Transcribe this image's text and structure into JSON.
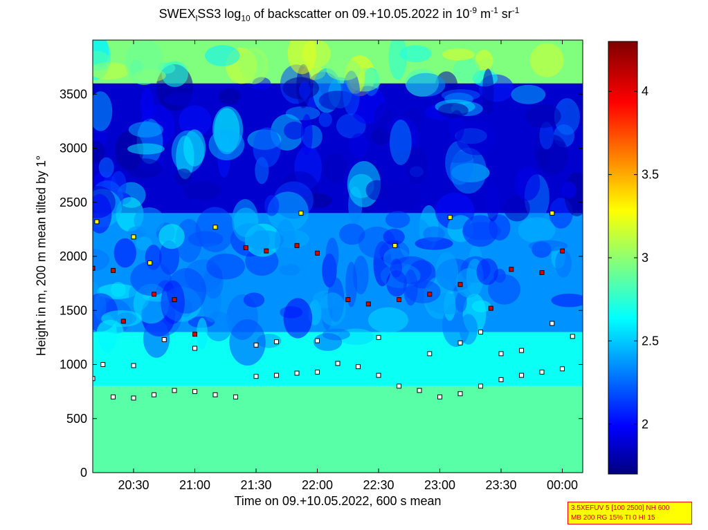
{
  "chart_data": {
    "type": "heatmap",
    "title_parts": {
      "pre": "SWEX",
      "sub1": "l",
      "mid": "SS3 log",
      "sub2": "10",
      "post": " of backscatter on 09.+10.05.2022 in 10",
      "sup1": "-9",
      "unit_m": " m",
      "sup2": "-1",
      "unit_sr": " sr",
      "sup3": "-1"
    },
    "xlabel": "Time on 09.+10.05.2022, 600 s mean",
    "ylabel": "Height in m, 200 m mean tilted by 1°",
    "x_ticks": [
      "20:30",
      "21:00",
      "21:30",
      "22:00",
      "22:30",
      "23:00",
      "23:30",
      "00:00"
    ],
    "y_ticks": [
      "0",
      "500",
      "1000",
      "1500",
      "2000",
      "2500",
      "3000",
      "3500"
    ],
    "colorbar_ticks": [
      "2",
      "2.5",
      "3",
      "3.5",
      "4"
    ],
    "xlim_minutes_after_2000": [
      10,
      250
    ],
    "ylim": [
      0,
      4000
    ],
    "colorbar_range": [
      1.7,
      4.3
    ],
    "colormap": "jet",
    "layers": [
      {
        "name": "surface",
        "height_range": [
          0,
          800
        ],
        "log_value": 2.9
      },
      {
        "name": "boundary",
        "height_range": [
          800,
          1300
        ],
        "log_value": 2.7
      },
      {
        "name": "transition",
        "height_range": [
          1300,
          2400
        ],
        "log_value": 2.4
      },
      {
        "name": "upper",
        "height_range": [
          2400,
          3600
        ],
        "log_value": 1.9
      },
      {
        "name": "top",
        "height_range": [
          3600,
          4000
        ],
        "log_value": 3.0
      }
    ],
    "marker_layers": [
      {
        "color": "white",
        "points": [
          [
            10,
            870
          ],
          [
            20,
            700
          ],
          [
            30,
            690
          ],
          [
            40,
            720
          ],
          [
            50,
            760
          ],
          [
            60,
            750
          ],
          [
            70,
            720
          ],
          [
            80,
            700
          ],
          [
            90,
            890
          ],
          [
            100,
            900
          ],
          [
            110,
            920
          ],
          [
            120,
            930
          ],
          [
            130,
            1010
          ],
          [
            140,
            980
          ],
          [
            150,
            900
          ],
          [
            160,
            800
          ],
          [
            170,
            760
          ],
          [
            180,
            700
          ],
          [
            190,
            730
          ],
          [
            200,
            800
          ],
          [
            210,
            860
          ],
          [
            220,
            900
          ],
          [
            230,
            930
          ],
          [
            240,
            960
          ]
        ]
      },
      {
        "color": "white",
        "points": [
          [
            15,
            1000
          ],
          [
            30,
            990
          ],
          [
            45,
            1230
          ],
          [
            60,
            1150
          ],
          [
            90,
            1180
          ],
          [
            100,
            1210
          ],
          [
            120,
            1220
          ],
          [
            150,
            1250
          ],
          [
            175,
            1100
          ],
          [
            190,
            1200
          ],
          [
            200,
            1300
          ],
          [
            210,
            1100
          ],
          [
            220,
            1130
          ],
          [
            235,
            1380
          ],
          [
            245,
            1260
          ]
        ]
      },
      {
        "color": "red",
        "points": [
          [
            10,
            1890
          ],
          [
            20,
            1870
          ],
          [
            25,
            1400
          ],
          [
            40,
            1650
          ],
          [
            50,
            1600
          ],
          [
            60,
            1280
          ],
          [
            85,
            2080
          ],
          [
            95,
            2050
          ],
          [
            110,
            2100
          ],
          [
            120,
            2030
          ],
          [
            135,
            1600
          ],
          [
            145,
            1560
          ],
          [
            160,
            1600
          ],
          [
            175,
            1650
          ],
          [
            190,
            1740
          ],
          [
            205,
            1520
          ],
          [
            215,
            1880
          ],
          [
            230,
            1850
          ],
          [
            240,
            2050
          ]
        ]
      },
      {
        "color": "yellow",
        "points": [
          [
            12,
            2320
          ],
          [
            30,
            2180
          ],
          [
            38,
            1940
          ],
          [
            70,
            2270
          ],
          [
            112,
            2400
          ],
          [
            158,
            2100
          ],
          [
            185,
            2360
          ],
          [
            235,
            2400
          ]
        ]
      }
    ],
    "info_lines": [
      "3.5XEFUV 5 [100 2500] NH 600",
      "MB 200 RG 15% TI 0 HI 15"
    ]
  }
}
